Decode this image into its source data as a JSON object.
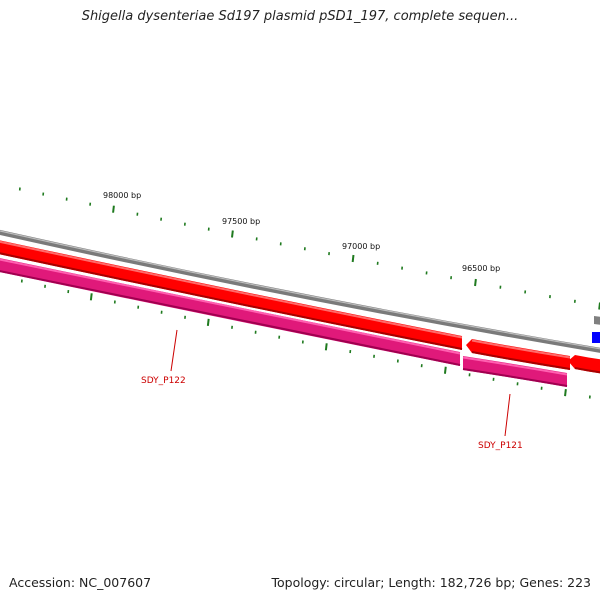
{
  "title": "Shigella dysenteriae Sd197 plasmid pSD1_197, complete sequen...",
  "accession_text": "Accession: NC_007607",
  "summary_text": "Topology: circular; Length: 182,726 bp; Genes: 223",
  "scale_labels": [
    "98000 bp",
    "97500 bp",
    "97000 bp",
    "96500 bp"
  ],
  "gene_labels": [
    "SDY_P122",
    "SDY_P121"
  ],
  "colors": {
    "backbone": "#808080",
    "forward_gene": "#ff0000",
    "reverse_gene": "#ff2a9a",
    "other_feature": "#0000ff",
    "tick": "#1f7a1f",
    "label": "#cc0000"
  }
}
